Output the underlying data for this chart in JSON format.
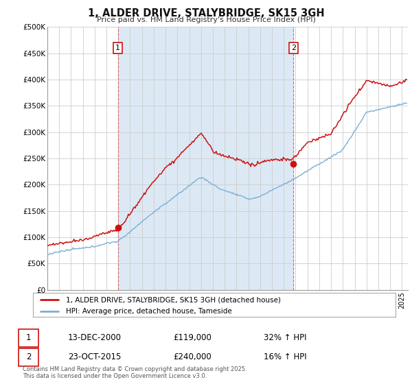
{
  "title": "1, ALDER DRIVE, STALYBRIDGE, SK15 3GH",
  "subtitle": "Price paid vs. HM Land Registry's House Price Index (HPI)",
  "ylabel_ticks": [
    "£0",
    "£50K",
    "£100K",
    "£150K",
    "£200K",
    "£250K",
    "£300K",
    "£350K",
    "£400K",
    "£450K",
    "£500K"
  ],
  "ytick_values": [
    0,
    50000,
    100000,
    150000,
    200000,
    250000,
    300000,
    350000,
    400000,
    450000,
    500000
  ],
  "ylim": [
    0,
    500000
  ],
  "xlim_start": 1995.0,
  "xlim_end": 2025.5,
  "purchase1_date": 2000.96,
  "purchase1_price": 119000,
  "purchase1_label": "1",
  "purchase2_date": 2015.81,
  "purchase2_price": 240000,
  "purchase2_label": "2",
  "red_line_color": "#cc1111",
  "blue_line_color": "#7bafd4",
  "shade_color": "#dce9f5",
  "vline_color": "#dd6666",
  "annotation_box_color": "#cc1111",
  "legend_label_red": "1, ALDER DRIVE, STALYBRIDGE, SK15 3GH (detached house)",
  "legend_label_blue": "HPI: Average price, detached house, Tameside",
  "table_row1": [
    "1",
    "13-DEC-2000",
    "£119,000",
    "32% ↑ HPI"
  ],
  "table_row2": [
    "2",
    "23-OCT-2015",
    "£240,000",
    "16% ↑ HPI"
  ],
  "footer": "Contains HM Land Registry data © Crown copyright and database right 2025.\nThis data is licensed under the Open Government Licence v3.0.",
  "background_color": "#ffffff",
  "grid_color": "#cccccc",
  "chart_bg": "#f0f4f8"
}
